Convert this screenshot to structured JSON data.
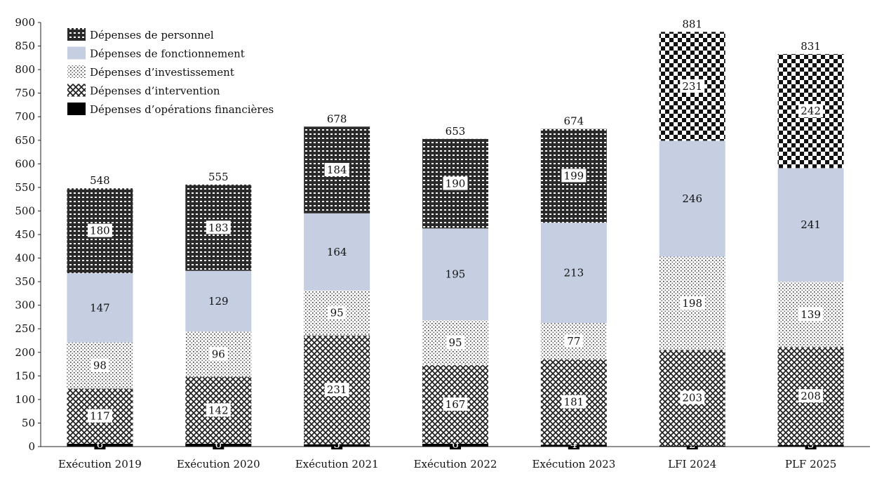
{
  "chart_data": {
    "type": "bar",
    "stacked": true,
    "categories": [
      "Exécution 2019",
      "Exécution 2020",
      "Exécution 2021",
      "Exécution 2022",
      "Exécution 2023",
      "LFI 2024",
      "PLF 2025"
    ],
    "ylim": [
      0,
      900
    ],
    "yticks": [
      0,
      50,
      100,
      150,
      200,
      250,
      300,
      350,
      400,
      450,
      500,
      550,
      600,
      650,
      700,
      750,
      800,
      850,
      900
    ],
    "totals": [
      548,
      555,
      678,
      653,
      674,
      881,
      831
    ],
    "legend_position": "top-left",
    "grid": false,
    "series": [
      {
        "name": "Dépenses d’opérations financières",
        "values": [
          6,
          6,
          5,
          6,
          4,
          2,
          3
        ],
        "color": "#000000",
        "pattern": "solid-black"
      },
      {
        "name": "Dépenses d’intervention",
        "values": [
          117,
          142,
          231,
          167,
          181,
          203,
          208
        ],
        "color": "#ffffff",
        "pattern": "checker-hatch"
      },
      {
        "name": "Dépenses d’investissement",
        "values": [
          98,
          96,
          95,
          95,
          77,
          198,
          139
        ],
        "color": "#ffffff",
        "pattern": "dots"
      },
      {
        "name": "Dépenses de fonctionnement",
        "values": [
          147,
          129,
          164,
          195,
          213,
          246,
          241
        ],
        "color": "#c5cfe1",
        "pattern": "solid-blue"
      },
      {
        "name": "Dépenses de personnel",
        "values": [
          180,
          183,
          184,
          190,
          199,
          231,
          242
        ],
        "color": "#333333",
        "pattern": "dark-grid"
      }
    ],
    "legend_order": [
      "Dépenses de personnel",
      "Dépenses de fonctionnement",
      "Dépenses d’investissement",
      "Dépenses d’intervention",
      "Dépenses d’opérations financières"
    ]
  }
}
